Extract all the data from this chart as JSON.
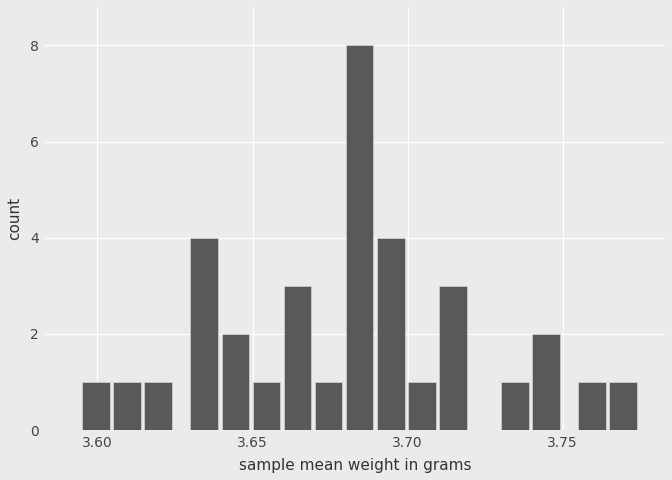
{
  "bin_left_edges": [
    3.595,
    3.605,
    3.615,
    3.63,
    3.64,
    3.65,
    3.66,
    3.67,
    3.68,
    3.69,
    3.7,
    3.71,
    3.73,
    3.74,
    3.755,
    3.765
  ],
  "counts": [
    1,
    1,
    1,
    4,
    2,
    1,
    3,
    1,
    8,
    4,
    1,
    3,
    1,
    2,
    1,
    1
  ],
  "bin_width": 0.009,
  "bar_color": "#595959",
  "bar_edge_color": "#d4d4d4",
  "bar_linewidth": 0.5,
  "background_color": "#ebebeb",
  "panel_color": "#ebebeb",
  "xlabel": "sample mean weight in grams",
  "ylabel": "count",
  "xlim": [
    3.583,
    3.783
  ],
  "ylim": [
    0,
    8.8
  ],
  "xticks": [
    3.6,
    3.65,
    3.7,
    3.75
  ],
  "yticks": [
    0,
    2,
    4,
    6,
    8
  ],
  "grid_color": "#ffffff",
  "grid_linewidth": 0.8,
  "label_fontsize": 11,
  "tick_fontsize": 10
}
